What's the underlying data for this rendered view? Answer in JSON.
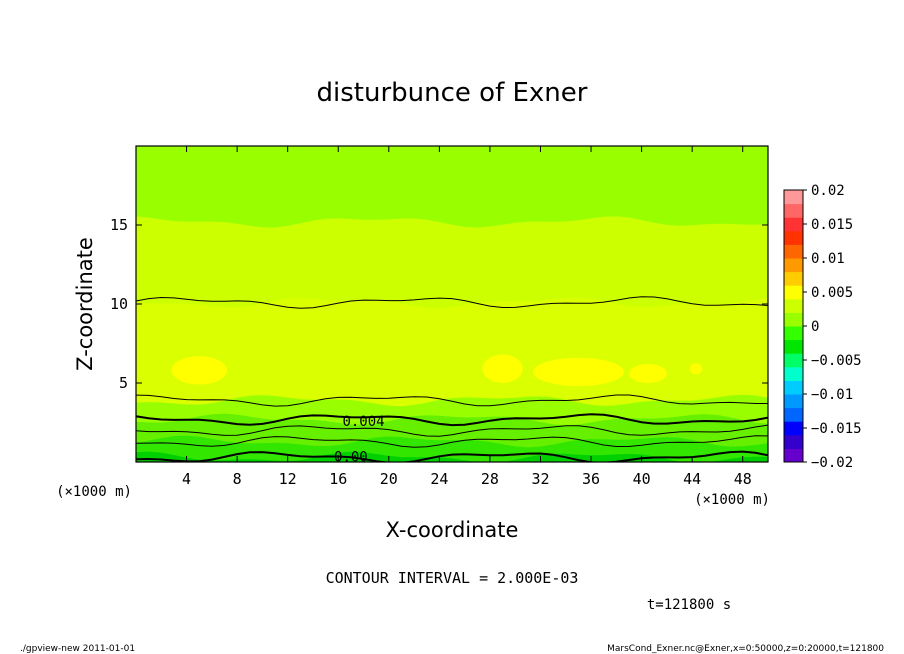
{
  "chart_data": {
    "type": "heatmap",
    "title": "disturbunce of Exner",
    "xlabel": "X-coordinate",
    "ylabel": "Z-coordinate",
    "x_unit_label": "(×1000 m)",
    "y_unit_label": "(×1000 m)",
    "xlim": [
      0,
      50
    ],
    "ylim": [
      0,
      20
    ],
    "x_ticks": [
      4,
      8,
      12,
      16,
      20,
      24,
      28,
      32,
      36,
      40,
      44,
      48
    ],
    "x_tick_labels": [
      "4",
      "8",
      "12",
      "16",
      "20",
      "24",
      "28",
      "32",
      "36",
      "40",
      "44",
      "48"
    ],
    "y_ticks": [
      5,
      10,
      15
    ],
    "y_tick_labels": [
      "5",
      "10",
      "15"
    ],
    "contour_interval_text": "CONTOUR INTERVAL = 2.000E-03",
    "contour_labels": [
      {
        "text": "0.004",
        "x": 18,
        "z": 2.6
      },
      {
        "text": "0.00",
        "x": 17,
        "z": 0.35
      }
    ],
    "bands": [
      {
        "z_low": 0,
        "z_high": 0.3,
        "value": "0.0005",
        "color": "#00d000"
      },
      {
        "z_low": 0.3,
        "z_high": 1.3,
        "value": "0.002",
        "color": "#33e600"
      },
      {
        "z_low": 1.3,
        "z_high": 2.7,
        "value": "0.003",
        "color": "#66f000"
      },
      {
        "z_low": 2.7,
        "z_high": 3.9,
        "value": "0.0045",
        "color": "#99ff00"
      },
      {
        "z_low": 3.9,
        "z_high": 10.1,
        "value": "0.006",
        "color": "#d9ff00"
      },
      {
        "z_low": 10.1,
        "z_high": 15.2,
        "value": "0.005",
        "color": "#ccff00"
      },
      {
        "z_low": 15.2,
        "z_high": 20,
        "value": "0.004",
        "color": "#99ff00"
      }
    ],
    "colorbar": {
      "min": -0.02,
      "max": 0.02,
      "tick_labels": [
        "0.02",
        "0.015",
        "0.01",
        "0.005",
        "0",
        "−0.005",
        "−0.01",
        "−0.015",
        "−0.02"
      ],
      "colors": [
        "#6600cc",
        "#3300cc",
        "#0000ff",
        "#0066ff",
        "#0099ff",
        "#00ccff",
        "#00ffcc",
        "#00ff66",
        "#00e600",
        "#33ff00",
        "#99ff00",
        "#ccff00",
        "#ffff00",
        "#ffcc00",
        "#ff9900",
        "#ff6600",
        "#ff3300",
        "#ff3333",
        "#ff6666",
        "#ff9999"
      ]
    },
    "time_label": "t=121800 s",
    "grid": false,
    "legend": "right"
  },
  "footer": {
    "left": "./gpview-new  2011-01-01",
    "right": "MarsCond_Exner.nc@Exner,x=0:50000,z=0:20000,t=121800"
  }
}
